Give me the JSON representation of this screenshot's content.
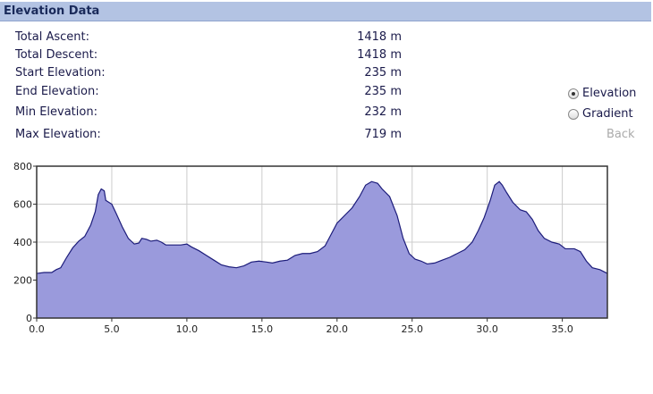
{
  "header": {
    "title": "Elevation Data"
  },
  "stats": [
    {
      "label": "Total Ascent:",
      "value": "1418 m"
    },
    {
      "label": "Total Descent:",
      "value": "1418 m"
    },
    {
      "label": "Start Elevation:",
      "value": "235 m"
    },
    {
      "label": "End Elevation:",
      "value": "235 m"
    },
    {
      "label": "Min Elevation:",
      "value": "232 m"
    },
    {
      "label": "Max Elevation:",
      "value": "719 m"
    }
  ],
  "options": [
    {
      "label": "Elevation",
      "selected": true
    },
    {
      "label": "Gradient",
      "selected": false
    }
  ],
  "back": "Back",
  "chart_data": {
    "type": "area",
    "x": [
      0,
      0.5,
      1.0,
      1.3,
      1.6,
      2.0,
      2.4,
      2.8,
      3.2,
      3.6,
      3.9,
      4.1,
      4.3,
      4.5,
      4.6,
      5.0,
      5.3,
      5.7,
      6.1,
      6.5,
      6.8,
      7.0,
      7.3,
      7.6,
      8.0,
      8.3,
      8.6,
      9.0,
      9.6,
      10.0,
      10.3,
      10.8,
      11.3,
      11.8,
      12.3,
      12.8,
      13.3,
      13.8,
      14.3,
      14.8,
      15.3,
      15.7,
      16.2,
      16.7,
      17.2,
      17.7,
      18.2,
      18.7,
      19.2,
      19.6,
      20.0,
      20.5,
      21.0,
      21.5,
      21.9,
      22.3,
      22.7,
      23.0,
      23.5,
      24.0,
      24.4,
      24.8,
      25.2,
      25.6,
      26.0,
      26.5,
      27.0,
      27.5,
      28.0,
      28.5,
      29.0,
      29.4,
      29.8,
      30.2,
      30.5,
      30.8,
      31.0,
      31.3,
      31.7,
      32.2,
      32.6,
      33.0,
      33.4,
      33.8,
      34.3,
      34.8,
      35.2,
      35.8,
      36.2,
      36.6,
      37.0,
      37.5,
      38.0
    ],
    "series": [
      {
        "color": "#9a9adc",
        "line_color": "#1c1c7a",
        "values": [
          235,
          240,
          240,
          255,
          265,
          320,
          370,
          405,
          430,
          490,
          560,
          650,
          680,
          670,
          620,
          600,
          550,
          480,
          420,
          390,
          395,
          420,
          415,
          405,
          410,
          400,
          385,
          385,
          385,
          390,
          375,
          355,
          330,
          305,
          280,
          270,
          265,
          275,
          295,
          300,
          295,
          290,
          300,
          305,
          330,
          340,
          340,
          350,
          380,
          440,
          500,
          540,
          580,
          640,
          700,
          719,
          710,
          680,
          640,
          540,
          420,
          340,
          310,
          300,
          285,
          290,
          305,
          320,
          340,
          360,
          400,
          460,
          530,
          620,
          700,
          719,
          700,
          660,
          610,
          570,
          560,
          520,
          460,
          420,
          400,
          390,
          365,
          365,
          350,
          300,
          265,
          255,
          235
        ]
      }
    ],
    "xlim": [
      0,
      38
    ],
    "ylim": [
      0,
      800
    ],
    "xticks": [
      {
        "value": 0,
        "label": "0.0"
      },
      {
        "value": 5,
        "label": "5.0"
      },
      {
        "value": 10,
        "label": "10.0"
      },
      {
        "value": 15,
        "label": "15.0"
      },
      {
        "value": 20,
        "label": "20.0"
      },
      {
        "value": 25,
        "label": "25.0"
      },
      {
        "value": 30,
        "label": "30.0"
      },
      {
        "value": 35,
        "label": "35.0"
      }
    ],
    "yticks": [
      0,
      200,
      400,
      600,
      800
    ],
    "grid": true
  }
}
